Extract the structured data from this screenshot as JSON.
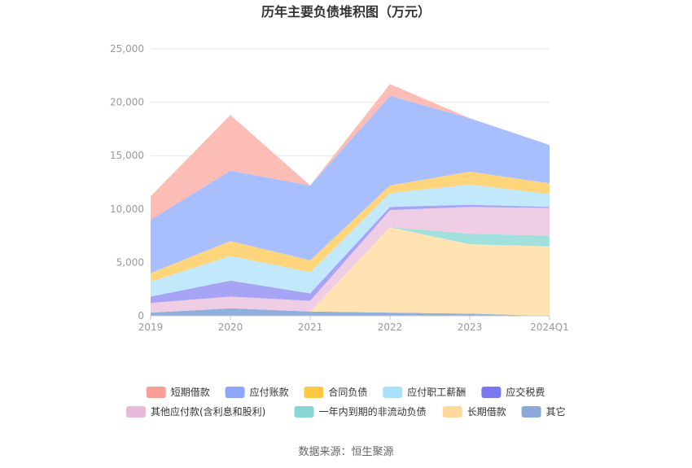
{
  "chart_data": {
    "type": "area",
    "stacked": true,
    "title": "历年主要负债堆积图（万元）",
    "x": [
      "2019",
      "2020",
      "2021",
      "2022",
      "2023",
      "2024Q1"
    ],
    "ylim": [
      0,
      25000
    ],
    "yticks": [
      "0",
      "5,000",
      "10,000",
      "15,000",
      "20,000",
      "25,000"
    ],
    "ytick_values": [
      0,
      5000,
      10000,
      15000,
      20000,
      25000
    ],
    "grid": true,
    "legend_position": "bottom",
    "series": [
      {
        "name": "其它",
        "color": "#8fb0dc",
        "values": [
          300,
          700,
          400,
          300,
          200,
          0
        ]
      },
      {
        "name": "长期借款",
        "color": "#ffe3b3",
        "values": [
          0,
          0,
          0,
          8000,
          6500,
          6500
        ]
      },
      {
        "name": "一年内到期的非流动负债",
        "color": "#a2e0de",
        "values": [
          0,
          0,
          0,
          0,
          1000,
          1000
        ]
      },
      {
        "name": "其他应付款(含利息和股利)",
        "color": "#efcee5",
        "values": [
          900,
          1100,
          1000,
          1600,
          2500,
          2600
        ]
      },
      {
        "name": "应交税费",
        "color": "#a8a4f5",
        "values": [
          600,
          1500,
          700,
          300,
          200,
          100
        ]
      },
      {
        "name": "应付职工薪酬",
        "color": "#c2e8fb",
        "values": [
          1400,
          2300,
          2000,
          1300,
          1900,
          1200
        ]
      },
      {
        "name": "合同负债",
        "color": "#ffd57c",
        "values": [
          800,
          1400,
          1100,
          700,
          1200,
          1000
        ]
      },
      {
        "name": "应付账款",
        "color": "#a9bffd",
        "values": [
          5000,
          6600,
          7000,
          8400,
          5000,
          3600
        ]
      },
      {
        "name": "短期借款",
        "color": "#fbbdb6",
        "values": [
          2200,
          5200,
          0,
          1100,
          0,
          0
        ]
      }
    ]
  },
  "legend": {
    "row1": [
      {
        "label": "短期借款",
        "color": "#f8a097"
      },
      {
        "label": "应付账款",
        "color": "#8da6f8"
      },
      {
        "label": "合同负债",
        "color": "#fdc843"
      },
      {
        "label": "应付职工薪酬",
        "color": "#a9e0fb"
      },
      {
        "label": "应交税费",
        "color": "#7b77ee"
      }
    ],
    "row2": [
      {
        "label": "其他应付款(含利息和股利)",
        "color": "#e9b9da"
      },
      {
        "label": "一年内到期的非流动负债",
        "color": "#86d6d3"
      },
      {
        "label": "长期借款",
        "color": "#ffd99b"
      },
      {
        "label": "其它",
        "color": "#8ca9db"
      }
    ]
  },
  "source": "数据来源：恒生聚源"
}
